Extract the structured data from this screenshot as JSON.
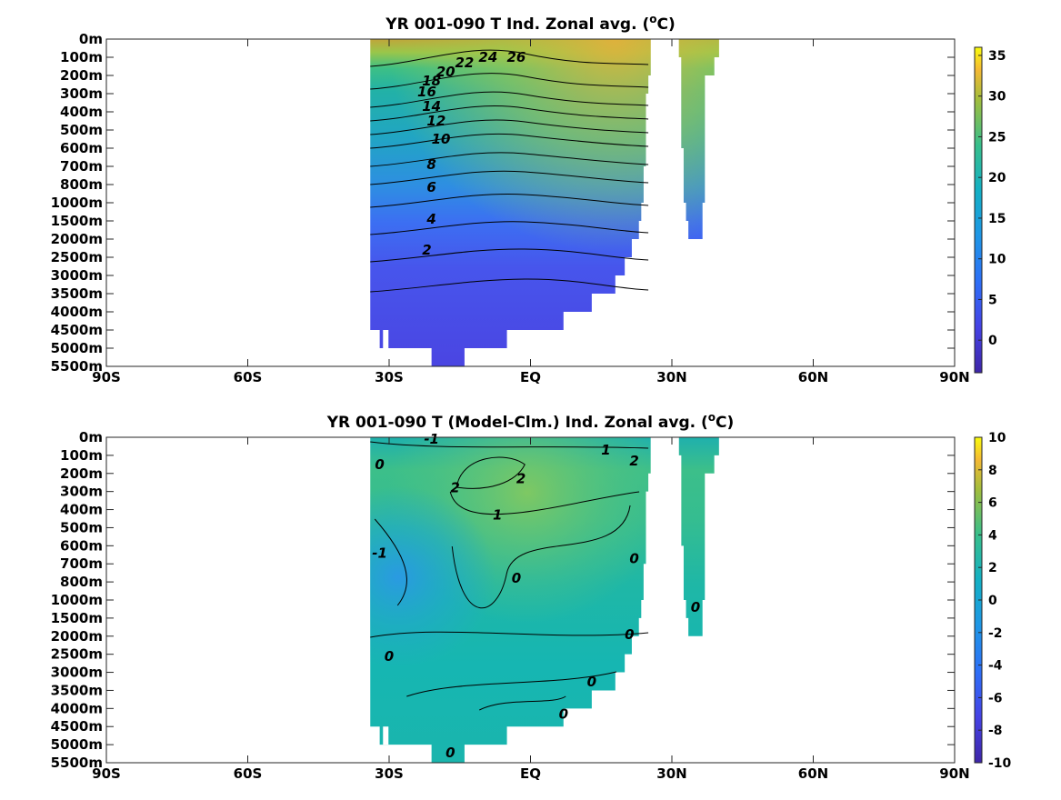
{
  "chart_data": [
    {
      "type": "heatmap",
      "title": "YR 001-090 T Ind. Zonal avg. (",
      "title_superscript": "o",
      "title_suffix": "C)",
      "y_ticks": [
        "0m",
        "100m",
        "200m",
        "300m",
        "400m",
        "500m",
        "600m",
        "700m",
        "800m",
        "1000m",
        "1500m",
        "2000m",
        "2500m",
        "3000m",
        "3500m",
        "4000m",
        "4500m",
        "5000m",
        "5500m"
      ],
      "x_ticks": [
        "90S",
        "60S",
        "30S",
        "EQ",
        "30N",
        "60N",
        "90N"
      ],
      "x_values": [
        -90,
        -60,
        -30,
        0,
        30,
        60,
        90
      ],
      "colorbar": {
        "ticks": [
          0,
          5,
          10,
          15,
          20,
          25,
          30,
          35
        ],
        "range": [
          -4,
          36
        ]
      },
      "contour_labels": [
        {
          "text": "26",
          "depth": 100,
          "lat": -3
        },
        {
          "text": "24",
          "depth": 100,
          "lat": -9
        },
        {
          "text": "22",
          "depth": 130,
          "lat": -14
        },
        {
          "text": "20",
          "depth": 180,
          "lat": -18
        },
        {
          "text": "18",
          "depth": 230,
          "lat": -21
        },
        {
          "text": "16",
          "depth": 290,
          "lat": -22
        },
        {
          "text": "14",
          "depth": 370,
          "lat": -21
        },
        {
          "text": "12",
          "depth": 450,
          "lat": -20
        },
        {
          "text": "10",
          "depth": 550,
          "lat": -19
        },
        {
          "text": "8",
          "depth": 690,
          "lat": -21
        },
        {
          "text": "6",
          "depth": 830,
          "lat": -21
        },
        {
          "text": "4",
          "depth": 1450,
          "lat": -21
        },
        {
          "text": "2",
          "depth": 2300,
          "lat": -22
        }
      ],
      "grid": false,
      "legend": "none"
    },
    {
      "type": "heatmap",
      "title": "YR 001-090 T (Model-Clm.) Ind. Zonal avg. (",
      "title_superscript": "o",
      "title_suffix": "C)",
      "y_ticks": [
        "0m",
        "100m",
        "200m",
        "300m",
        "400m",
        "500m",
        "600m",
        "700m",
        "800m",
        "1000m",
        "1500m",
        "2000m",
        "2500m",
        "3000m",
        "3500m",
        "4000m",
        "4500m",
        "5000m",
        "5500m"
      ],
      "x_ticks": [
        "90S",
        "60S",
        "30S",
        "EQ",
        "30N",
        "60N",
        "90N"
      ],
      "x_values": [
        -90,
        -60,
        -30,
        0,
        30,
        60,
        90
      ],
      "colorbar": {
        "ticks": [
          -10,
          -8,
          -6,
          -4,
          -2,
          0,
          2,
          4,
          6,
          8,
          10
        ],
        "range": [
          -10,
          10
        ]
      },
      "contour_labels": [
        {
          "text": "-1",
          "depth": 10,
          "lat": -21
        },
        {
          "text": "1",
          "depth": 70,
          "lat": 16
        },
        {
          "text": "2",
          "depth": 130,
          "lat": 22
        },
        {
          "text": "0",
          "depth": 150,
          "lat": -32
        },
        {
          "text": "2",
          "depth": 230,
          "lat": -2
        },
        {
          "text": "2",
          "depth": 280,
          "lat": -16
        },
        {
          "text": "1",
          "depth": 430,
          "lat": -7
        },
        {
          "text": "-1",
          "depth": 640,
          "lat": -32
        },
        {
          "text": "0",
          "depth": 670,
          "lat": 22
        },
        {
          "text": "0",
          "depth": 780,
          "lat": -3
        },
        {
          "text": "0",
          "depth": 1200,
          "lat": 35
        },
        {
          "text": "0",
          "depth": 1950,
          "lat": 21
        },
        {
          "text": "0",
          "depth": 2560,
          "lat": -30
        },
        {
          "text": "0",
          "depth": 3260,
          "lat": 13
        },
        {
          "text": "0",
          "depth": 4150,
          "lat": 7
        },
        {
          "text": "0",
          "depth": 5220,
          "lat": -17
        }
      ],
      "grid": false,
      "legend": "none"
    }
  ]
}
